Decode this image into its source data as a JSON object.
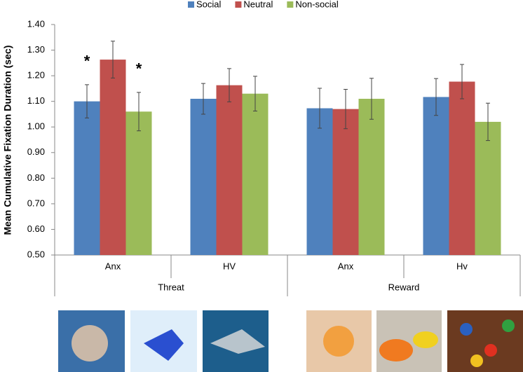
{
  "chart_data": {
    "type": "bar",
    "y_label": "Mean Cumulative Fixation Duration (sec)",
    "categories": [
      "Anx",
      "HV",
      "Anx",
      "Hv"
    ],
    "groups": [
      "Threat",
      "Reward"
    ],
    "series": [
      {
        "name": "Social",
        "color": "#4f81bd",
        "values": [
          1.1,
          1.11,
          1.073,
          1.117
        ],
        "errors": [
          0.065,
          0.06,
          0.078,
          0.072
        ]
      },
      {
        "name": "Neutral",
        "color": "#c0504d",
        "values": [
          1.263,
          1.163,
          1.07,
          1.177
        ],
        "errors": [
          0.072,
          0.065,
          0.077,
          0.067
        ]
      },
      {
        "name": "Non-social",
        "color": "#9bbb59",
        "values": [
          1.06,
          1.13,
          1.11,
          1.02
        ],
        "errors": [
          0.075,
          0.068,
          0.08,
          0.073
        ]
      }
    ],
    "annotations": [
      "*",
      "*"
    ],
    "ylim": [
      0.5,
      1.4
    ],
    "yticks": [
      {
        "value": 0.5,
        "label": "0.50"
      },
      {
        "value": 0.6,
        "label": "0.60"
      },
      {
        "value": 0.7,
        "label": "0.70"
      },
      {
        "value": 0.8,
        "label": "0.80"
      },
      {
        "value": 0.9,
        "label": "0.90"
      },
      {
        "value": 1.0,
        "label": "1.00"
      },
      {
        "value": 1.1,
        "label": "1.10"
      },
      {
        "value": 1.2,
        "label": "1.20"
      },
      {
        "value": 1.3,
        "label": "1.30"
      },
      {
        "value": 1.4,
        "label": "1.40"
      }
    ],
    "legend": "top"
  }
}
